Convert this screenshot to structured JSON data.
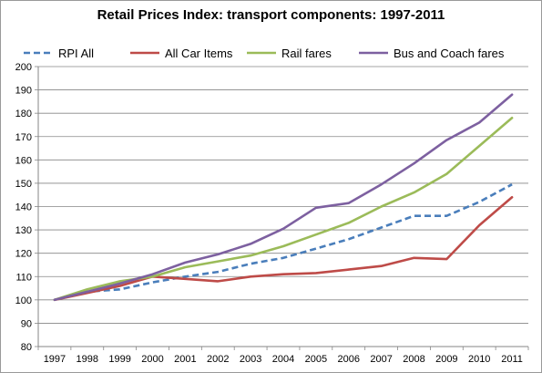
{
  "chart_data": {
    "type": "line",
    "title": "Retail Prices Index: transport components: 1997-2011",
    "xlabel": "",
    "ylabel": "",
    "categories": [
      "1997",
      "1998",
      "1999",
      "2000",
      "2001",
      "2002",
      "2003",
      "2004",
      "2005",
      "2006",
      "2007",
      "2008",
      "2009",
      "2010",
      "2011"
    ],
    "ylim": [
      80,
      200
    ],
    "ytick_step": 10,
    "grid": true,
    "legend_position": "top",
    "series": [
      {
        "name": "RPI All",
        "color": "#4a7ebb",
        "dashed": true,
        "values": [
          100,
          103.5,
          104.5,
          107.5,
          110,
          112,
          115.5,
          118,
          122,
          126,
          131,
          136,
          136,
          142,
          149.5
        ]
      },
      {
        "name": "All Car Items",
        "color": "#be4b48",
        "dashed": false,
        "values": [
          100,
          103,
          106,
          110,
          109,
          108,
          110,
          111,
          111.5,
          113,
          114.5,
          118,
          117.5,
          132,
          144
        ]
      },
      {
        "name": "Rail fares",
        "color": "#9bbb59",
        "dashed": false,
        "values": [
          100,
          104.5,
          108,
          110,
          114,
          116.5,
          119,
          123,
          128,
          133,
          140,
          146,
          154,
          166,
          178
        ]
      },
      {
        "name": "Bus and Coach fares",
        "color": "#7d60a0",
        "dashed": false,
        "values": [
          100,
          103.5,
          107,
          111,
          116,
          119.5,
          124,
          130.5,
          139.5,
          141.5,
          149.5,
          158.5,
          168.5,
          176,
          188
        ]
      }
    ]
  }
}
